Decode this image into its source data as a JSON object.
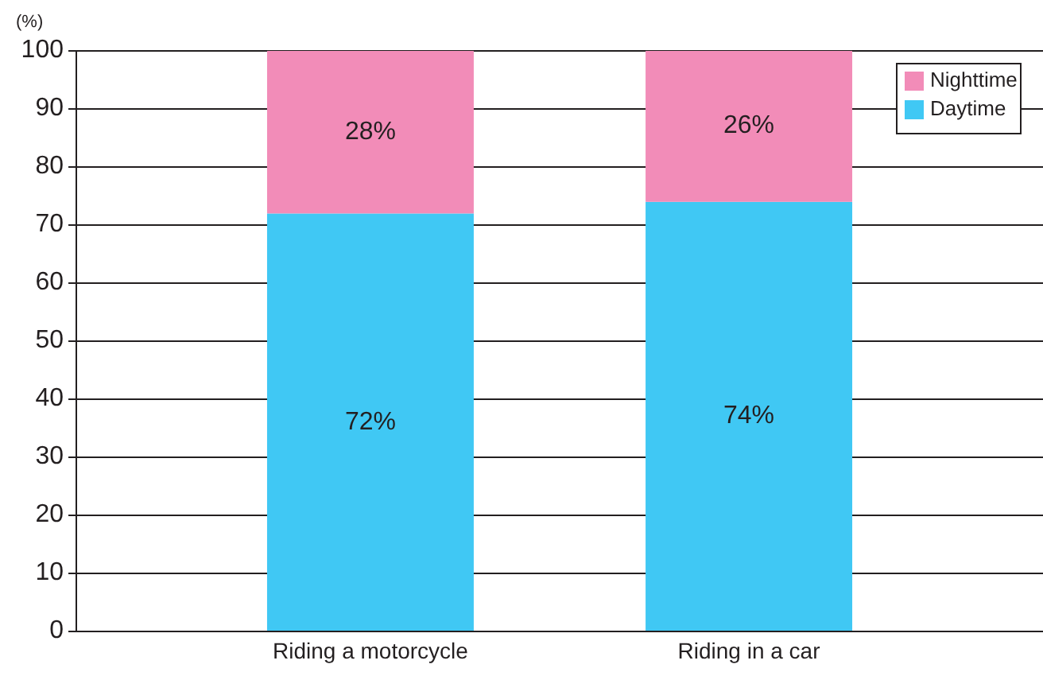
{
  "chart_data": {
    "type": "bar",
    "stacked": true,
    "ylabel": "(%)",
    "categories": [
      "Riding a motorcycle",
      "Riding in a car"
    ],
    "series": [
      {
        "name": "Daytime",
        "color": "#40c8f4",
        "values": [
          72,
          74
        ],
        "value_labels": [
          "72%",
          "74%"
        ]
      },
      {
        "name": "Nighttime",
        "color": "#f28cb8",
        "values": [
          28,
          26
        ],
        "value_labels": [
          "28%",
          "26%"
        ]
      }
    ],
    "ylim": [
      0,
      100
    ],
    "yticks": [
      0,
      10,
      20,
      30,
      40,
      50,
      60,
      70,
      80,
      90,
      100
    ],
    "grid": "y",
    "legend": "top right"
  }
}
